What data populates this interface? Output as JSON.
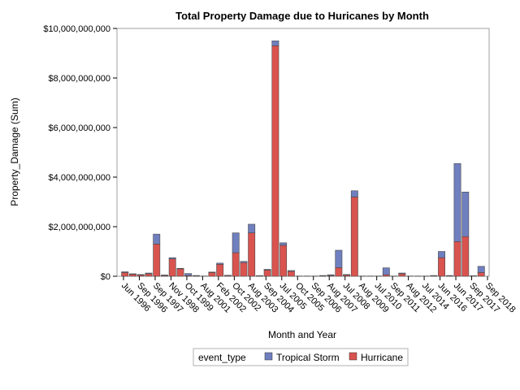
{
  "chart_data": {
    "type": "bar",
    "stacked": true,
    "title": "Total Property Damage due to Huricanes by Month",
    "xlabel": "Month and Year",
    "ylabel": "Property_Damage (Sum)",
    "ylim": [
      0,
      10000000000
    ],
    "yticks": [
      0,
      2000000000,
      4000000000,
      6000000000,
      8000000000,
      10000000000
    ],
    "ytick_labels": [
      "$0",
      "$2,000,000,000",
      "$4,000,000,000",
      "$6,000,000,000",
      "$8,000,000,000",
      "$10,000,000,000"
    ],
    "xtick_labels": [
      "Jun 1996",
      "Sep 1996",
      "Sep 1997",
      "Nov 1998",
      "Oct 1999",
      "Aug 2001",
      "Feb 2002",
      "Oct 2002",
      "Aug 2003",
      "Sep 2004",
      "Jul 2005",
      "Oct 2005",
      "Sep 2006",
      "Aug 2007",
      "Jul 2008",
      "Aug 2009",
      "Jul 2010",
      "Sep 2011",
      "Aug 2012",
      "Jul 2014",
      "Jun 2016",
      "Jun 2017",
      "Sep 2017",
      "Sep 2018"
    ],
    "legend": {
      "title": "event_type",
      "position": "bottom",
      "entries": [
        {
          "name": "Tropical Storm",
          "color": "#6f7fbf"
        },
        {
          "name": "Hurricane",
          "color": "#d9534f"
        }
      ]
    },
    "series": [
      {
        "name": "Hurricane",
        "color": "#d9534f",
        "values": [
          150000000,
          80000000,
          50000000,
          100000000,
          1300000000,
          30000000,
          700000000,
          300000000,
          30000000,
          10000000,
          5000000,
          150000000,
          480000000,
          30000000,
          950000000,
          550000000,
          1750000000,
          20000000,
          250000000,
          9300000000,
          1250000000,
          200000000,
          5000000,
          5000000,
          5000000,
          10000000,
          30000000,
          350000000,
          50000000,
          3200000000,
          5000000,
          5000000,
          5000000,
          60000000,
          5000000,
          100000000,
          5000000,
          5000000,
          5000000,
          10000000,
          750000000,
          10000000,
          1400000000,
          1600000000,
          10000000,
          150000000
        ]
      },
      {
        "name": "Tropical Storm",
        "color": "#6f7fbf",
        "values": [
          30000000,
          20000000,
          20000000,
          30000000,
          400000000,
          20000000,
          50000000,
          20000000,
          80000000,
          20000000,
          5000000,
          20000000,
          50000000,
          10000000,
          800000000,
          50000000,
          350000000,
          5000000,
          30000000,
          200000000,
          100000000,
          30000000,
          5000000,
          5000000,
          5000000,
          20000000,
          30000000,
          700000000,
          20000000,
          250000000,
          5000000,
          5000000,
          5000000,
          280000000,
          5000000,
          30000000,
          5000000,
          5000000,
          5000000,
          20000000,
          250000000,
          20000000,
          3150000000,
          1800000000,
          10000000,
          250000000
        ]
      }
    ]
  }
}
